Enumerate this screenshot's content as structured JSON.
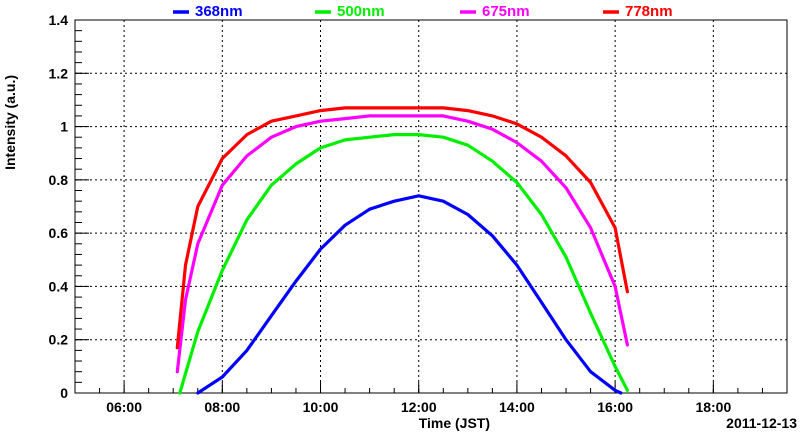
{
  "chart_data": {
    "type": "line",
    "xlabel": "Time (JST)",
    "ylabel": "Intensity (a.u.)",
    "date_label": "2011-12-13",
    "xlim": [
      "05:00",
      "19:30"
    ],
    "ylim": [
      0,
      1.4
    ],
    "x_ticks": [
      "06:00",
      "08:00",
      "10:00",
      "12:00",
      "14:00",
      "16:00",
      "18:00"
    ],
    "y_ticks": [
      "0",
      "0.2",
      "0.4",
      "0.6",
      "0.8",
      "1",
      "1.2",
      "1.4"
    ],
    "grid": true,
    "legend_position": "top",
    "series": [
      {
        "name": "368nm",
        "color": "#0000ff",
        "x": [
          "07:30",
          "08:00",
          "08:30",
          "09:00",
          "09:30",
          "10:00",
          "10:30",
          "11:00",
          "11:30",
          "12:00",
          "12:30",
          "13:00",
          "13:30",
          "14:00",
          "14:30",
          "15:00",
          "15:30",
          "16:00",
          "16:07"
        ],
        "values": [
          0.0,
          0.06,
          0.16,
          0.29,
          0.42,
          0.54,
          0.63,
          0.69,
          0.72,
          0.74,
          0.72,
          0.67,
          0.59,
          0.48,
          0.34,
          0.2,
          0.08,
          0.01,
          0.0
        ]
      },
      {
        "name": "500nm",
        "color": "#00ee00",
        "x": [
          "07:08",
          "07:30",
          "08:00",
          "08:30",
          "09:00",
          "09:30",
          "10:00",
          "10:30",
          "11:00",
          "11:30",
          "12:00",
          "12:30",
          "13:00",
          "13:30",
          "14:00",
          "14:30",
          "15:00",
          "15:30",
          "16:00",
          "16:15"
        ],
        "values": [
          0.0,
          0.23,
          0.46,
          0.65,
          0.78,
          0.86,
          0.92,
          0.95,
          0.96,
          0.97,
          0.97,
          0.96,
          0.93,
          0.87,
          0.79,
          0.67,
          0.51,
          0.3,
          0.1,
          0.01
        ]
      },
      {
        "name": "675nm",
        "color": "#ff00ff",
        "x": [
          "07:05",
          "07:15",
          "07:30",
          "08:00",
          "08:30",
          "09:00",
          "09:30",
          "10:00",
          "10:30",
          "11:00",
          "11:30",
          "12:00",
          "12:30",
          "13:00",
          "13:30",
          "14:00",
          "14:30",
          "15:00",
          "15:30",
          "16:00",
          "16:15"
        ],
        "values": [
          0.08,
          0.35,
          0.56,
          0.78,
          0.89,
          0.96,
          1.0,
          1.02,
          1.03,
          1.04,
          1.04,
          1.04,
          1.04,
          1.02,
          0.99,
          0.94,
          0.87,
          0.77,
          0.62,
          0.4,
          0.18
        ]
      },
      {
        "name": "778nm",
        "color": "#ff0000",
        "x": [
          "07:05",
          "07:15",
          "07:30",
          "08:00",
          "08:30",
          "09:00",
          "09:30",
          "10:00",
          "10:30",
          "11:00",
          "11:30",
          "12:00",
          "12:30",
          "13:00",
          "13:30",
          "14:00",
          "14:30",
          "15:00",
          "15:30",
          "16:00",
          "16:15"
        ],
        "values": [
          0.17,
          0.48,
          0.7,
          0.88,
          0.97,
          1.02,
          1.04,
          1.06,
          1.07,
          1.07,
          1.07,
          1.07,
          1.07,
          1.06,
          1.04,
          1.01,
          0.96,
          0.89,
          0.79,
          0.62,
          0.38
        ]
      }
    ]
  }
}
